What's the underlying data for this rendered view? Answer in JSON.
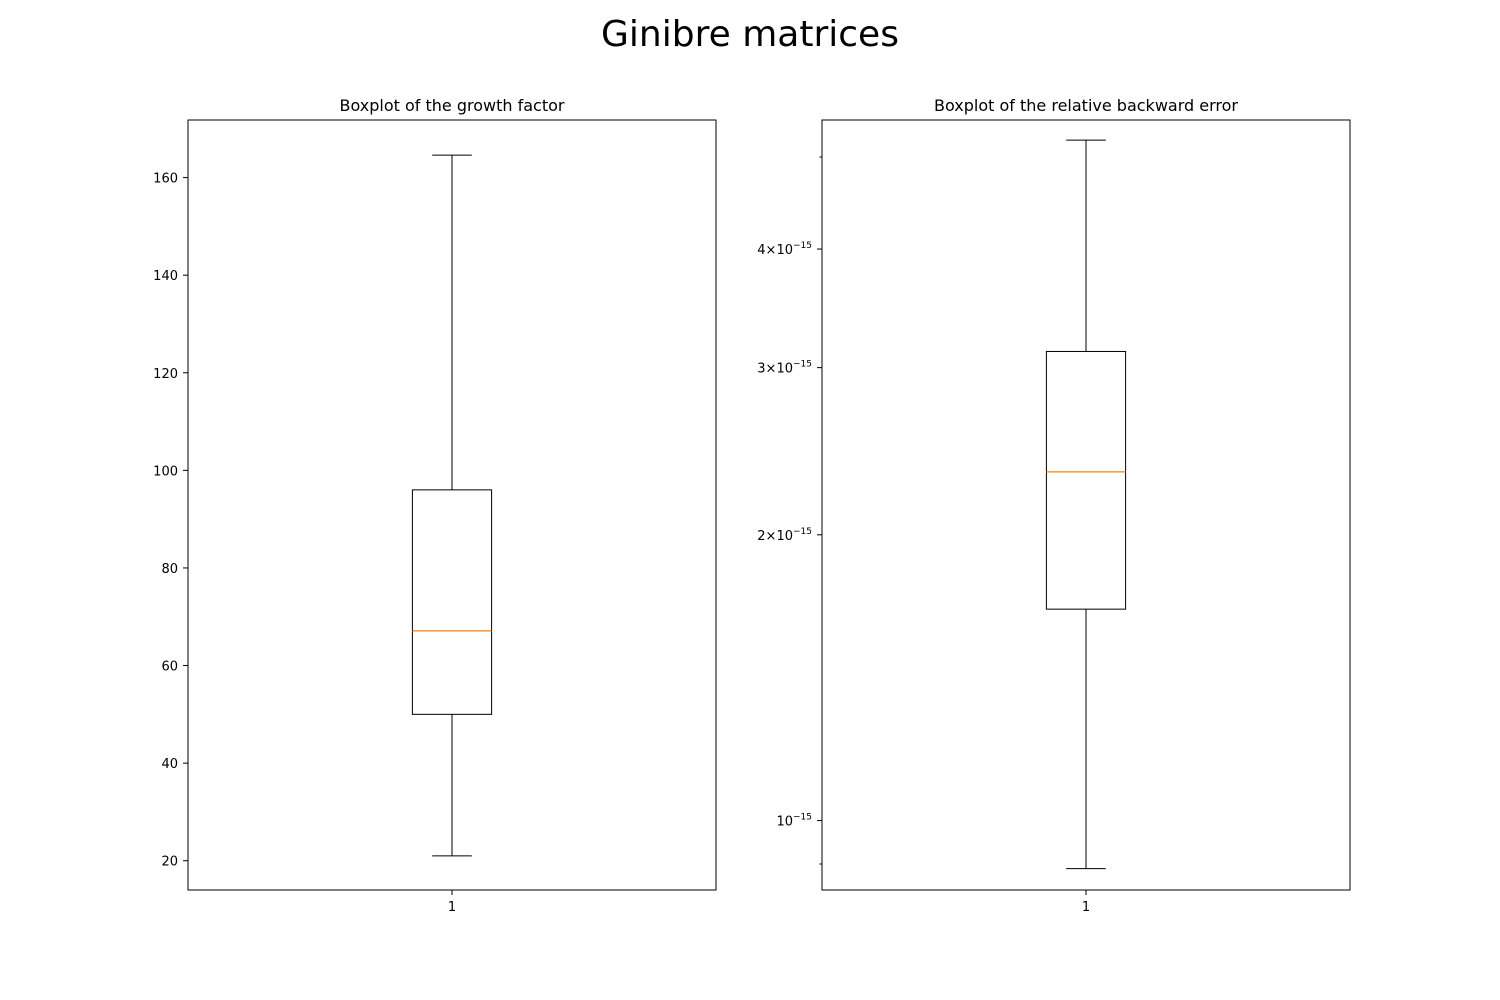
{
  "figure": {
    "title": "Ginibre matrices"
  },
  "chart_data": [
    {
      "type": "boxplot",
      "title": "Boxplot of the growth factor",
      "xlabel": "",
      "ylabel": "",
      "scale": "linear",
      "ylim": [
        14,
        171.8
      ],
      "categories": [
        "1"
      ],
      "yticks": [
        20,
        40,
        60,
        80,
        100,
        120,
        140,
        160
      ],
      "ytick_labels": [
        "20",
        "40",
        "60",
        "80",
        "100",
        "120",
        "140",
        "160"
      ],
      "boxes": [
        {
          "category": "1",
          "whisker_low": 21,
          "q1": 50,
          "median": 67.1,
          "q3": 96,
          "whisker_high": 164.6
        }
      ],
      "colors": {
        "box": "#000000",
        "median": "#ff7f0e"
      }
    },
    {
      "type": "boxplot",
      "title": "Boxplot of the relative backward error",
      "xlabel": "",
      "ylabel": "",
      "scale": "log",
      "ylim": [
        8.45e-16,
        5.47e-15
      ],
      "categories": [
        "1"
      ],
      "yticks": [
        1e-15,
        2e-15,
        3e-15,
        4e-15
      ],
      "ytick_labels": [
        {
          "mantissa": "",
          "exponent": "−15"
        },
        {
          "mantissa": "2×10",
          "exponent": "−15"
        },
        {
          "mantissa": "3×10",
          "exponent": "−15"
        },
        {
          "mantissa": "4×10",
          "exponent": "−15"
        }
      ],
      "minor_yticks": [
        9e-16,
        5e-15
      ],
      "boxes": [
        {
          "category": "1",
          "whisker_low": 8.9e-16,
          "q1": 1.67e-15,
          "median": 2.33e-15,
          "q3": 3.12e-15,
          "whisker_high": 5.21e-15
        }
      ],
      "colors": {
        "box": "#000000",
        "median": "#ff7f0e"
      }
    }
  ]
}
